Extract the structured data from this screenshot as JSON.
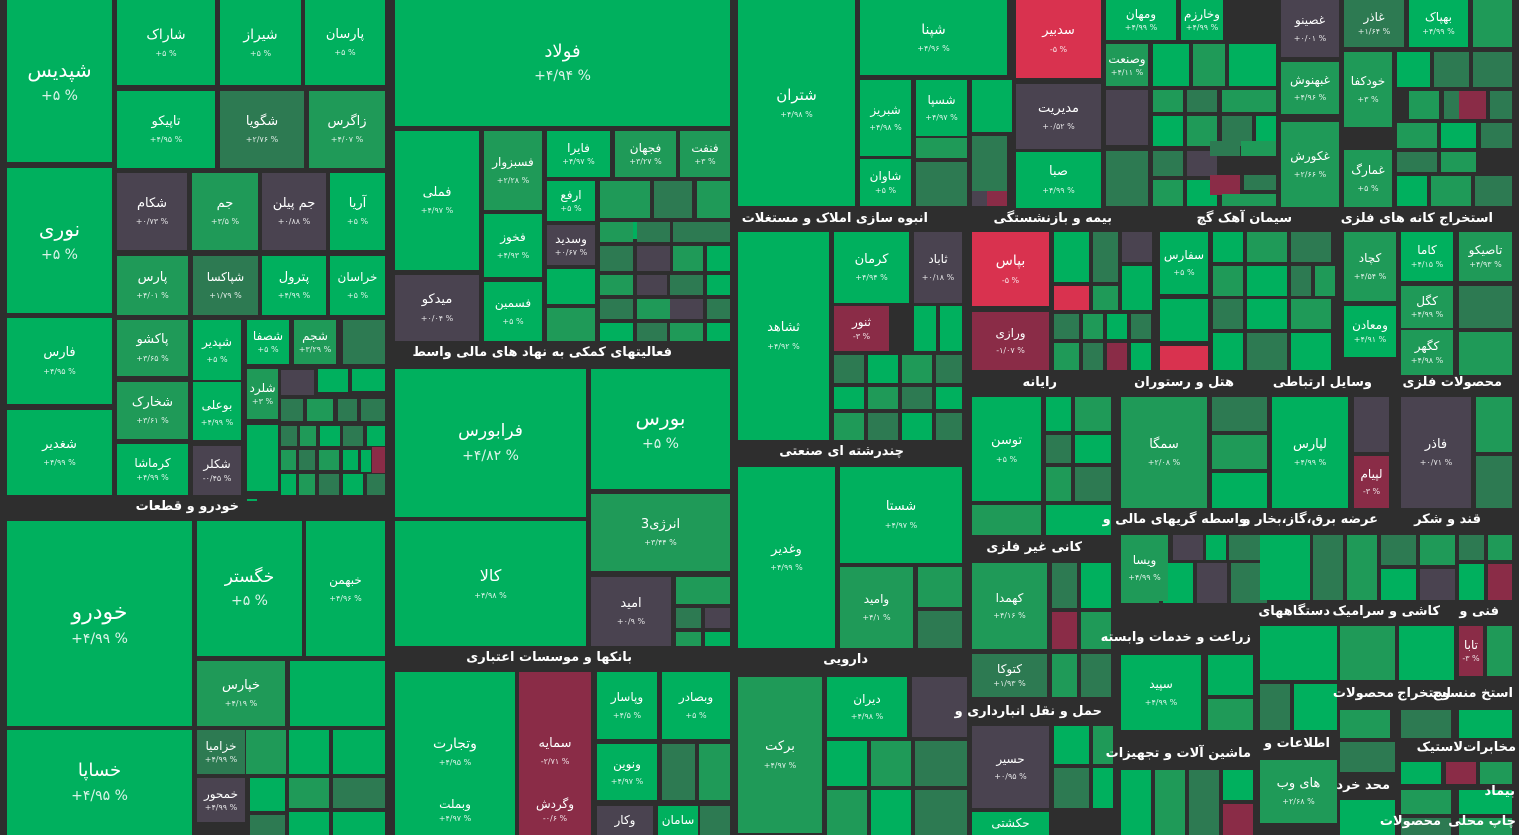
{
  "chart_data": {
    "type": "treemap",
    "title": "",
    "colors": {
      "background": "#2e2e2e",
      "up_strong": "#00b05e",
      "up_mid": "#1f9a58",
      "up_weak": "#2d7a52",
      "neutral": "#4a4350",
      "down_weak": "#8a2c47",
      "down_strong": "#d9324f"
    },
    "sectors": [
      "خودرو و قطعات",
      "فعالیتهای کمکی به نهاد های مالی واسط",
      "بانکها و موسسات اعتباری",
      "انبوه سازی املاک و مستغلات",
      "بیمه و بازنشستگی",
      "سیمان آهک گچ",
      "استخراج کانه های فلزی",
      "چندرشته ای صنعتی",
      "رایانه",
      "هتل و رستوران",
      "وسایل ارتباطی",
      "محصولات فلزی",
      "دارویی",
      "کانی غیر فلزی",
      "واسطه گریهای مالی و",
      "عرضه برق،گاز،بخار و",
      "قند و شکر",
      "حمل و نقل انبارداری و",
      "زراعت و خدمات وابسته",
      "دستگاههای",
      "کاشی و سرامیک",
      "فنی و",
      "ماشین آلات و تجهیزات",
      "اطلاعات و",
      "محصولات",
      "استخراج",
      "استخ منسوج",
      "مخابرات",
      "لاستیک",
      "محد خرد",
      "بیماد",
      "محصولات",
      "چاپ محلی"
    ],
    "tiles": [
      {
        "name": "شپدیس",
        "change": "+۵ %",
        "value": 5
      },
      {
        "name": "نوری",
        "change": "+۵ %",
        "value": 5
      },
      {
        "name": "فارس",
        "change": "+۴/۹۵ %",
        "value": 4.95
      },
      {
        "name": "شغدیر",
        "change": "+۴/۹۹ %",
        "value": 4.99
      },
      {
        "name": "شاراک",
        "change": "+۵ %",
        "value": 5
      },
      {
        "name": "شیراز",
        "change": "+۵ %",
        "value": 5
      },
      {
        "name": "پارسان",
        "change": "+۵ %",
        "value": 5
      },
      {
        "name": "تاپیکو",
        "change": "+۴/۹۵ %",
        "value": 4.95
      },
      {
        "name": "شگویا",
        "change": "+۲/۷۶ %",
        "value": 2.76
      },
      {
        "name": "زاگرس",
        "change": "+۴/۰۷ %",
        "value": 4.07
      },
      {
        "name": "شکام",
        "change": "+۰/۷۳ %",
        "value": 0.73
      },
      {
        "name": "جم",
        "change": "+۳/۵ %",
        "value": 3.5
      },
      {
        "name": "جم پیلن",
        "change": "+۰/۸۸ %",
        "value": 0.88
      },
      {
        "name": "آریا",
        "change": "+۵ %",
        "value": 5
      },
      {
        "name": "پارس",
        "change": "+۴/۰۱ %",
        "value": 4.01
      },
      {
        "name": "شپاکسا",
        "change": "+۱/۷۹ %",
        "value": 1.79
      },
      {
        "name": "پترول",
        "change": "+۴/۹۹ %",
        "value": 4.99
      },
      {
        "name": "خراسان",
        "change": "+۵ %",
        "value": 5
      },
      {
        "name": "پاکشو",
        "change": "+۳/۶۵ %",
        "value": 3.65
      },
      {
        "name": "شصفا",
        "change": "+۵ %",
        "value": 5
      },
      {
        "name": "شجم",
        "change": "+۳/۲۹ %",
        "value": 3.29
      },
      {
        "name": "شپدیر",
        "change": "+۵ %",
        "value": 5
      },
      {
        "name": "شخارک",
        "change": "+۳/۶۱ %",
        "value": 3.61
      },
      {
        "name": "شلرد",
        "change": "+۳ %",
        "value": 3
      },
      {
        "name": "بوعلی",
        "change": "+۴/۹۹ %",
        "value": 4.99
      },
      {
        "name": "کرماشا",
        "change": "+۴/۹۹ %",
        "value": 4.99
      },
      {
        "name": "شکلر",
        "change": "-۰/۴۵ %",
        "value": -0.45
      },
      {
        "name": "فولاد",
        "change": "+۴/۹۴ %",
        "value": 4.94
      },
      {
        "name": "فملی",
        "change": "+۴/۹۷ %",
        "value": 4.97
      },
      {
        "name": "فسبزوار",
        "change": "+۲/۲۸ %",
        "value": 2.28
      },
      {
        "name": "فایرا",
        "change": "+۴/۹۷ %",
        "value": 4.97
      },
      {
        "name": "فجهان",
        "change": "+۳/۲۷ %",
        "value": 3.27
      },
      {
        "name": "فنفت",
        "change": "+۳ %",
        "value": 3
      },
      {
        "name": "ارفع",
        "change": "+۵ %",
        "value": 5
      },
      {
        "name": "فخوز",
        "change": "+۴/۹۳ %",
        "value": 4.93
      },
      {
        "name": "وسدید",
        "change": "+۰/۶۷ %",
        "value": 0.67
      },
      {
        "name": "میدکو",
        "change": "+۰/۰۴ %",
        "value": 0.04
      },
      {
        "name": "فسمین",
        "change": "+۵ %",
        "value": 5
      },
      {
        "name": "فرابورس",
        "change": "+۴/۸۲ %",
        "value": 4.82
      },
      {
        "name": "بورس",
        "change": "+۵ %",
        "value": 5
      },
      {
        "name": "انرژی3",
        "change": "+۳/۴۴ %",
        "value": 3.44
      },
      {
        "name": "کالا",
        "change": "+۴/۹۸ %",
        "value": 4.98
      },
      {
        "name": "امید",
        "change": "+۰/۹ %",
        "value": 0.9
      },
      {
        "name": "وتجارت",
        "change": "+۴/۹۵ %",
        "value": 4.95
      },
      {
        "name": "سمایه",
        "change": "-۲/۷۱ %",
        "value": -2.71
      },
      {
        "name": "وپاسار",
        "change": "+۴/۵ %",
        "value": 4.5
      },
      {
        "name": "وبصادر",
        "change": "+۵ %",
        "value": 5
      },
      {
        "name": "ونوین",
        "change": "+۴/۹۷ %",
        "value": 4.97
      },
      {
        "name": "وبملت",
        "change": "+۴/۹۷ %",
        "value": 4.97
      },
      {
        "name": "وگردش",
        "change": "-۰/۶ %",
        "value": -0.6
      },
      {
        "name": "وکار",
        "change": "",
        "value": null
      },
      {
        "name": "سامان",
        "change": "",
        "value": null
      },
      {
        "name": "خودرو",
        "change": "+۴/۹۹ %",
        "value": 4.99
      },
      {
        "name": "خگستر",
        "change": "+۵ %",
        "value": 5
      },
      {
        "name": "خبهمن",
        "change": "+۴/۹۶ %",
        "value": 4.96
      },
      {
        "name": "خپارس",
        "change": "+۴/۱۹ %",
        "value": 4.19
      },
      {
        "name": "خساپا",
        "change": "+۴/۹۵ %",
        "value": 4.95
      },
      {
        "name": "خزامیا",
        "change": "+۴/۹۹ %",
        "value": 4.99
      },
      {
        "name": "خمحور",
        "change": "+۴/۹۹ %",
        "value": 4.99
      },
      {
        "name": "شتران",
        "change": "+۴/۹۸ %",
        "value": 4.98
      },
      {
        "name": "شپنا",
        "change": "+۴/۹۶ %",
        "value": 4.96
      },
      {
        "name": "شبریز",
        "change": "+۴/۹۸ %",
        "value": 4.98
      },
      {
        "name": "شسپا",
        "change": "+۴/۹۷ %",
        "value": 4.97
      },
      {
        "name": "شاوان",
        "change": "+۵ %",
        "value": 5
      },
      {
        "name": "سدبیر",
        "change": "-۵ %",
        "value": -5
      },
      {
        "name": "مدیریت",
        "change": "+۰/۵۲ %",
        "value": 0.52
      },
      {
        "name": "صبا",
        "change": "+۴/۹۹ %",
        "value": 4.99
      },
      {
        "name": "ومهان",
        "change": "+۴/۹۹ %",
        "value": 4.99
      },
      {
        "name": "وصنعت",
        "change": "+۴/۱۱ %",
        "value": 4.11
      },
      {
        "name": "وخارزم",
        "change": "+۴/۹۹ %",
        "value": 4.99
      },
      {
        "name": "غصینو",
        "change": "+۰/۰۱ %",
        "value": 0.01
      },
      {
        "name": "غبهنوش",
        "change": "+۴/۹۶ %",
        "value": 4.96
      },
      {
        "name": "غکورش",
        "change": "+۲/۶۶ %",
        "value": 2.66
      },
      {
        "name": "غاذر",
        "change": "+۱/۶۴ %",
        "value": 1.64
      },
      {
        "name": "خودکفا",
        "change": "+۳ %",
        "value": 3
      },
      {
        "name": "غمارگ",
        "change": "+۵ %",
        "value": 5
      },
      {
        "name": "بهپاک",
        "change": "+۴/۹۹ %",
        "value": 4.99
      },
      {
        "name": "ثشاهد",
        "change": "+۴/۹۲ %",
        "value": 4.92
      },
      {
        "name": "کرمان",
        "change": "+۴/۹۴ %",
        "value": 4.94
      },
      {
        "name": "ثاباد",
        "change": "+۰/۱۸ %",
        "value": 0.18
      },
      {
        "name": "ثنور",
        "change": "-۳ %",
        "value": -3
      },
      {
        "name": "بپاس",
        "change": "-۵ %",
        "value": -5
      },
      {
        "name": "ورازی",
        "change": "-۱/۰۷ %",
        "value": -1.07
      },
      {
        "name": "سفارس",
        "change": "+۵ %",
        "value": 5
      },
      {
        "name": "کچاد",
        "change": "+۴/۵۴ %",
        "value": 4.54
      },
      {
        "name": "کاما",
        "change": "+۴/۱۵ %",
        "value": 4.15
      },
      {
        "name": "تاصیکو",
        "change": "+۴/۹۳ %",
        "value": 4.93
      },
      {
        "name": "کگل",
        "change": "+۴/۹۹ %",
        "value": 4.99
      },
      {
        "name": "ومعادن",
        "change": "+۴/۹۱ %",
        "value": 4.91
      },
      {
        "name": "کگهر",
        "change": "+۴/۹۸ %",
        "value": 4.98
      },
      {
        "name": "وغدیر",
        "change": "+۴/۹۹ %",
        "value": 4.99
      },
      {
        "name": "شستا",
        "change": "+۴/۹۷ %",
        "value": 4.97
      },
      {
        "name": "وامید",
        "change": "+۴/۱ %",
        "value": 4.1
      },
      {
        "name": "توسن",
        "change": "+۵ %",
        "value": 5
      },
      {
        "name": "سمگا",
        "change": "+۲/۰۸ %",
        "value": 2.08
      },
      {
        "name": "لپارس",
        "change": "+۴/۹۹ %",
        "value": 4.99
      },
      {
        "name": "لپیام",
        "change": "-۳ %",
        "value": -3
      },
      {
        "name": "فاذر",
        "change": "+۰/۷۱ %",
        "value": 0.71
      },
      {
        "name": "ویسا",
        "change": "+۴/۹۹ %",
        "value": 4.99
      },
      {
        "name": "کهمدا",
        "change": "+۴/۱۶ %",
        "value": 4.16
      },
      {
        "name": "کتوکا",
        "change": "+۱/۹۳ %",
        "value": 1.93
      },
      {
        "name": "سپید",
        "change": "+۴/۹۹ %",
        "value": 4.99
      },
      {
        "name": "تابا",
        "change": "-۳ %",
        "value": -3
      },
      {
        "name": "دیران",
        "change": "+۴/۹۸ %",
        "value": 4.98
      },
      {
        "name": "برکت",
        "change": "+۴/۹۷ %",
        "value": 4.97
      },
      {
        "name": "حسیر",
        "change": "+۰/۹۵ %",
        "value": 0.95
      },
      {
        "name": "حکشتی",
        "change": "",
        "value": null
      },
      {
        "name": "های وب",
        "change": "+۲/۶۸ %",
        "value": 2.68
      }
    ]
  }
}
